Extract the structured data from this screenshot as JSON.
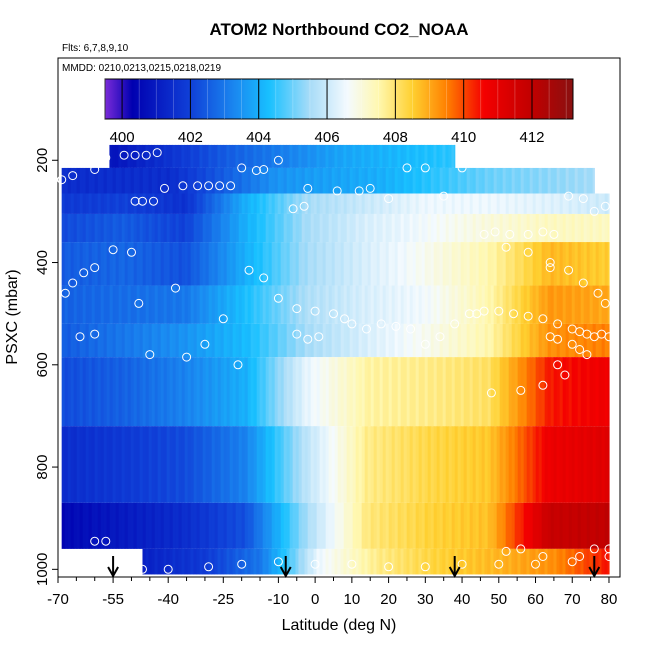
{
  "chart_data": {
    "type": "heatmap",
    "title": "ATOM2 Northbound CO2_NOAA",
    "flights_note": "Flts: 6,7,8,9,10",
    "dates_note": "MMDD: 0210,0213,0215,0218,0219",
    "xlabel": "Latitude (deg N)",
    "ylabel": "PSXC (mbar)",
    "xlim": [
      -70,
      83
    ],
    "ylim": [
      1015,
      0
    ],
    "x_ticks": [
      -70,
      -55,
      -40,
      -25,
      -10,
      0,
      10,
      20,
      30,
      40,
      50,
      60,
      70,
      80
    ],
    "y_ticks": [
      200,
      400,
      600,
      800,
      1000
    ],
    "colorbar": {
      "range": [
        399.5,
        413.2
      ],
      "ticks": [
        400,
        402,
        404,
        406,
        408,
        410,
        412
      ],
      "major_lines": [
        400,
        402,
        404,
        406,
        408,
        410,
        412
      ],
      "color_stops": [
        {
          "v": 399.5,
          "c": "#7b2bd9"
        },
        {
          "v": 400.3,
          "c": "#0000b0"
        },
        {
          "v": 402.0,
          "c": "#1040d8"
        },
        {
          "v": 403.3,
          "c": "#1a88f0"
        },
        {
          "v": 404.3,
          "c": "#18c0ff"
        },
        {
          "v": 405.5,
          "c": "#a8dcf8"
        },
        {
          "v": 406.6,
          "c": "#f4fafe"
        },
        {
          "v": 407.5,
          "c": "#fff8b0"
        },
        {
          "v": 408.5,
          "c": "#ffd030"
        },
        {
          "v": 409.5,
          "c": "#ff8000"
        },
        {
          "v": 410.6,
          "c": "#f40000"
        },
        {
          "v": 412.0,
          "c": "#c00000"
        },
        {
          "v": 413.2,
          "c": "#8a1010"
        }
      ]
    },
    "arrows_latitude": [
      -55,
      -8,
      38,
      76
    ],
    "bands": [
      {
        "p_top": 170,
        "p_bot": 215,
        "x0": -56,
        "x1": 38,
        "v": [
          400.8,
          402.5,
          403.8,
          404.5
        ]
      },
      {
        "p_top": 215,
        "p_bot": 265,
        "x0": -69,
        "x1": 76,
        "v": [
          401.5,
          401.5,
          403.5,
          404,
          405,
          405.5
        ]
      },
      {
        "p_top": 265,
        "p_bot": 305,
        "x0": -69,
        "x1": 80,
        "v": [
          401.8,
          402,
          401.6,
          404,
          405.5,
          406,
          406.5,
          406.5,
          406.3,
          406
        ]
      },
      {
        "p_top": 305,
        "p_bot": 360,
        "x0": -69,
        "x1": 80,
        "v": [
          402.2,
          402.5,
          402,
          404,
          405.5,
          406.2,
          406.6,
          407,
          407.3,
          407.3
        ]
      },
      {
        "p_top": 360,
        "p_bot": 445,
        "x0": -69,
        "x1": 80,
        "v": [
          402.5,
          402.7,
          402.3,
          404,
          405.5,
          406.2,
          406.8,
          407.5,
          408.8,
          408.5
        ]
      },
      {
        "p_top": 445,
        "p_bot": 520,
        "x0": -69,
        "x1": 80,
        "v": [
          402.6,
          402.8,
          403,
          404.3,
          405.6,
          406.2,
          406.6,
          407.5,
          409.2,
          409
        ]
      },
      {
        "p_top": 520,
        "p_bot": 585,
        "x0": -69,
        "x1": 80,
        "v": [
          402.5,
          403,
          403.5,
          404.2,
          405.5,
          406.2,
          406.8,
          407.5,
          409.3,
          409.5
        ]
      },
      {
        "p_top": 585,
        "p_bot": 720,
        "x0": -69,
        "x1": 80,
        "v": [
          402.2,
          402.6,
          403.2,
          404,
          406.4,
          407.6,
          407.8,
          408.1,
          410.4,
          410.8
        ]
      },
      {
        "p_top": 720,
        "p_bot": 870,
        "x0": -69,
        "x1": 80,
        "v": [
          401.5,
          401.8,
          402.2,
          403.2,
          405.8,
          407.8,
          408.3,
          408.6,
          410.8,
          411.2
        ]
      },
      {
        "p_top": 870,
        "p_bot": 960,
        "x0": -69,
        "x1": 80,
        "v": [
          400.5,
          401,
          401.5,
          402.3,
          405.5,
          407.9,
          408.4,
          408.7,
          411.8,
          412
        ]
      },
      {
        "p_top": 960,
        "p_bot": 1010,
        "x0": -47,
        "x1": 80,
        "v": [
          401.2,
          401.8,
          403,
          406.5,
          407.8,
          408.4,
          408.8,
          409.3,
          410.5
        ]
      }
    ],
    "obs_points": [
      [
        -57,
        195
      ],
      [
        -52,
        190
      ],
      [
        -49,
        190
      ],
      [
        -46,
        190
      ],
      [
        -43,
        185
      ],
      [
        -60,
        218
      ],
      [
        -66,
        230
      ],
      [
        -69,
        238
      ],
      [
        -16,
        220
      ],
      [
        -14,
        218
      ],
      [
        -20,
        215
      ],
      [
        -36,
        250
      ],
      [
        -32,
        250
      ],
      [
        -29,
        250
      ],
      [
        -26,
        250
      ],
      [
        -23,
        250
      ],
      [
        -41,
        255
      ],
      [
        -44,
        280
      ],
      [
        -47,
        280
      ],
      [
        -49,
        280
      ],
      [
        -10,
        200
      ],
      [
        -2,
        255
      ],
      [
        6,
        260
      ],
      [
        12,
        260
      ],
      [
        15,
        255
      ],
      [
        20,
        275
      ],
      [
        25,
        215
      ],
      [
        30,
        215
      ],
      [
        35,
        270
      ],
      [
        40,
        215
      ],
      [
        -3,
        290
      ],
      [
        -6,
        295
      ],
      [
        -50,
        380
      ],
      [
        -55,
        375
      ],
      [
        -60,
        410
      ],
      [
        -63,
        420
      ],
      [
        -66,
        440
      ],
      [
        -68,
        460
      ],
      [
        -48,
        480
      ],
      [
        -38,
        450
      ],
      [
        -18,
        415
      ],
      [
        -14,
        430
      ],
      [
        -10,
        470
      ],
      [
        -5,
        490
      ],
      [
        0,
        495
      ],
      [
        5,
        500
      ],
      [
        8,
        510
      ],
      [
        10,
        520
      ],
      [
        14,
        530
      ],
      [
        18,
        520
      ],
      [
        22,
        525
      ],
      [
        26,
        530
      ],
      [
        30,
        560
      ],
      [
        34,
        545
      ],
      [
        38,
        520
      ],
      [
        42,
        500
      ],
      [
        44,
        500
      ],
      [
        46,
        495
      ],
      [
        50,
        495
      ],
      [
        54,
        500
      ],
      [
        58,
        505
      ],
      [
        62,
        510
      ],
      [
        66,
        520
      ],
      [
        70,
        530
      ],
      [
        72,
        535
      ],
      [
        74,
        540
      ],
      [
        76,
        545
      ],
      [
        78,
        540
      ],
      [
        80,
        545
      ],
      [
        46,
        345
      ],
      [
        49,
        340
      ],
      [
        53,
        345
      ],
      [
        58,
        345
      ],
      [
        62,
        340
      ],
      [
        65,
        345
      ],
      [
        69,
        270
      ],
      [
        73,
        275
      ],
      [
        76,
        300
      ],
      [
        79,
        290
      ],
      [
        52,
        370
      ],
      [
        58,
        380
      ],
      [
        64,
        410
      ],
      [
        69,
        415
      ],
      [
        73,
        440
      ],
      [
        77,
        460
      ],
      [
        79,
        480
      ],
      [
        -5,
        540
      ],
      [
        -2,
        550
      ],
      [
        1,
        545
      ],
      [
        -60,
        540
      ],
      [
        -64,
        545
      ],
      [
        -30,
        560
      ],
      [
        -25,
        510
      ],
      [
        -45,
        580
      ],
      [
        -35,
        585
      ],
      [
        -21,
        600
      ],
      [
        -60,
        945
      ],
      [
        -57,
        945
      ],
      [
        -52,
        995
      ],
      [
        -47,
        1000
      ],
      [
        -40,
        1000
      ],
      [
        -29,
        995
      ],
      [
        -20,
        990
      ],
      [
        -10,
        985
      ],
      [
        0,
        990
      ],
      [
        10,
        990
      ],
      [
        20,
        995
      ],
      [
        30,
        995
      ],
      [
        40,
        990
      ],
      [
        50,
        990
      ],
      [
        60,
        990
      ],
      [
        70,
        985
      ],
      [
        80,
        975
      ],
      [
        52,
        965
      ],
      [
        56,
        960
      ],
      [
        62,
        975
      ],
      [
        72,
        975
      ],
      [
        76,
        960
      ],
      [
        80,
        960
      ],
      [
        64,
        400
      ],
      [
        64,
        545
      ],
      [
        66,
        550
      ],
      [
        70,
        560
      ],
      [
        72,
        570
      ],
      [
        74,
        580
      ],
      [
        66,
        600
      ],
      [
        68,
        620
      ],
      [
        62,
        640
      ],
      [
        56,
        650
      ],
      [
        48,
        655
      ]
    ]
  }
}
